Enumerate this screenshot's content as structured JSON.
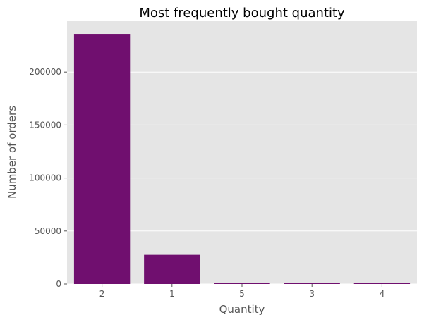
{
  "chart_data": {
    "type": "bar",
    "title": "Most frequently bought quantity",
    "xlabel": "Quantity",
    "ylabel": "Number of orders",
    "categories": [
      "2",
      "1",
      "5",
      "3",
      "4"
    ],
    "values": [
      236000,
      27500,
      400,
      300,
      200
    ],
    "ylim": [
      0,
      248000
    ],
    "yticks": [
      0,
      50000,
      100000,
      150000,
      200000
    ],
    "ytick_labels": [
      "0",
      "50000",
      "100000",
      "150000",
      "200000"
    ],
    "grid": true,
    "colors": {
      "bar": "#700F6F",
      "plot_background": "#E5E5E5",
      "grid": "#FFFFFF",
      "tick_text": "#555555",
      "title_text": "#000000"
    }
  }
}
